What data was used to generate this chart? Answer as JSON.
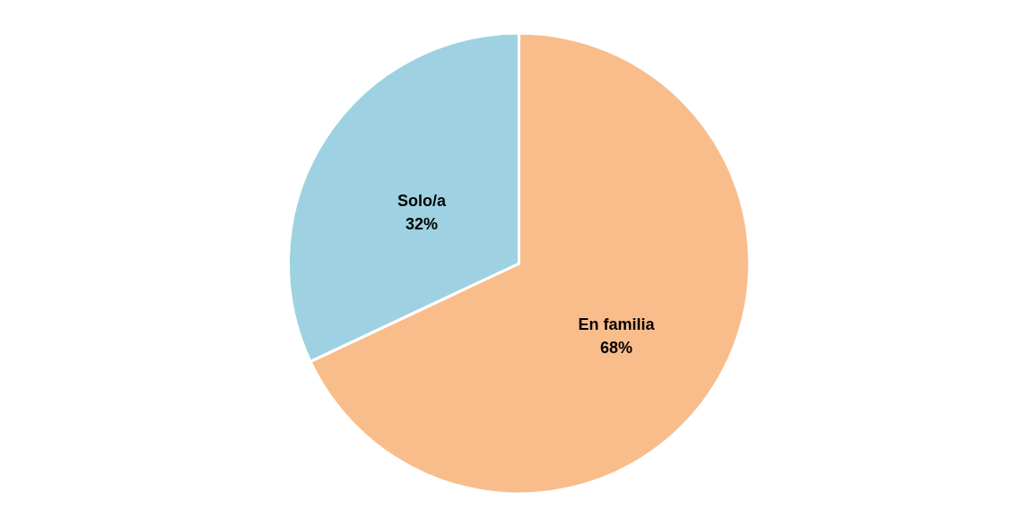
{
  "chart_data": {
    "type": "pie",
    "categories": [
      "En familia",
      "Solo/a"
    ],
    "values": [
      68,
      32
    ],
    "colors": [
      "#f9bd8c",
      "#9ed2e2"
    ],
    "value_labels": [
      "68%",
      "32%"
    ]
  }
}
